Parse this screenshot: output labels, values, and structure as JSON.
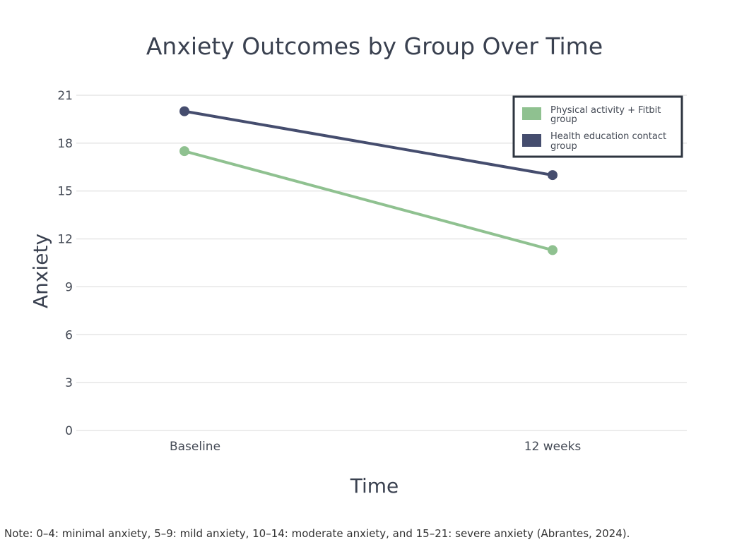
{
  "chart_data": {
    "type": "line",
    "title": "Anxiety Outcomes by Group Over Time",
    "xlabel": "Time",
    "ylabel": "Anxiety",
    "categories": [
      "Baseline",
      "12 weeks"
    ],
    "ylim": [
      0,
      21
    ],
    "yticks": [
      0,
      3,
      6,
      9,
      12,
      15,
      18,
      21
    ],
    "grid": true,
    "legend_position": "top-right",
    "series": [
      {
        "name": "Physical activity + Fitbit group",
        "values": [
          17.5,
          11.3
        ],
        "color": "#8fc190"
      },
      {
        "name": "Health education contact group",
        "values": [
          20.0,
          16.0
        ],
        "color": "#454d6e"
      }
    ],
    "note": "Note: 0–4: minimal anxiety, 5–9: mild anxiety, 10–14: moderate anxiety, and 15–21: severe anxiety (Abrantes, 2024)."
  }
}
